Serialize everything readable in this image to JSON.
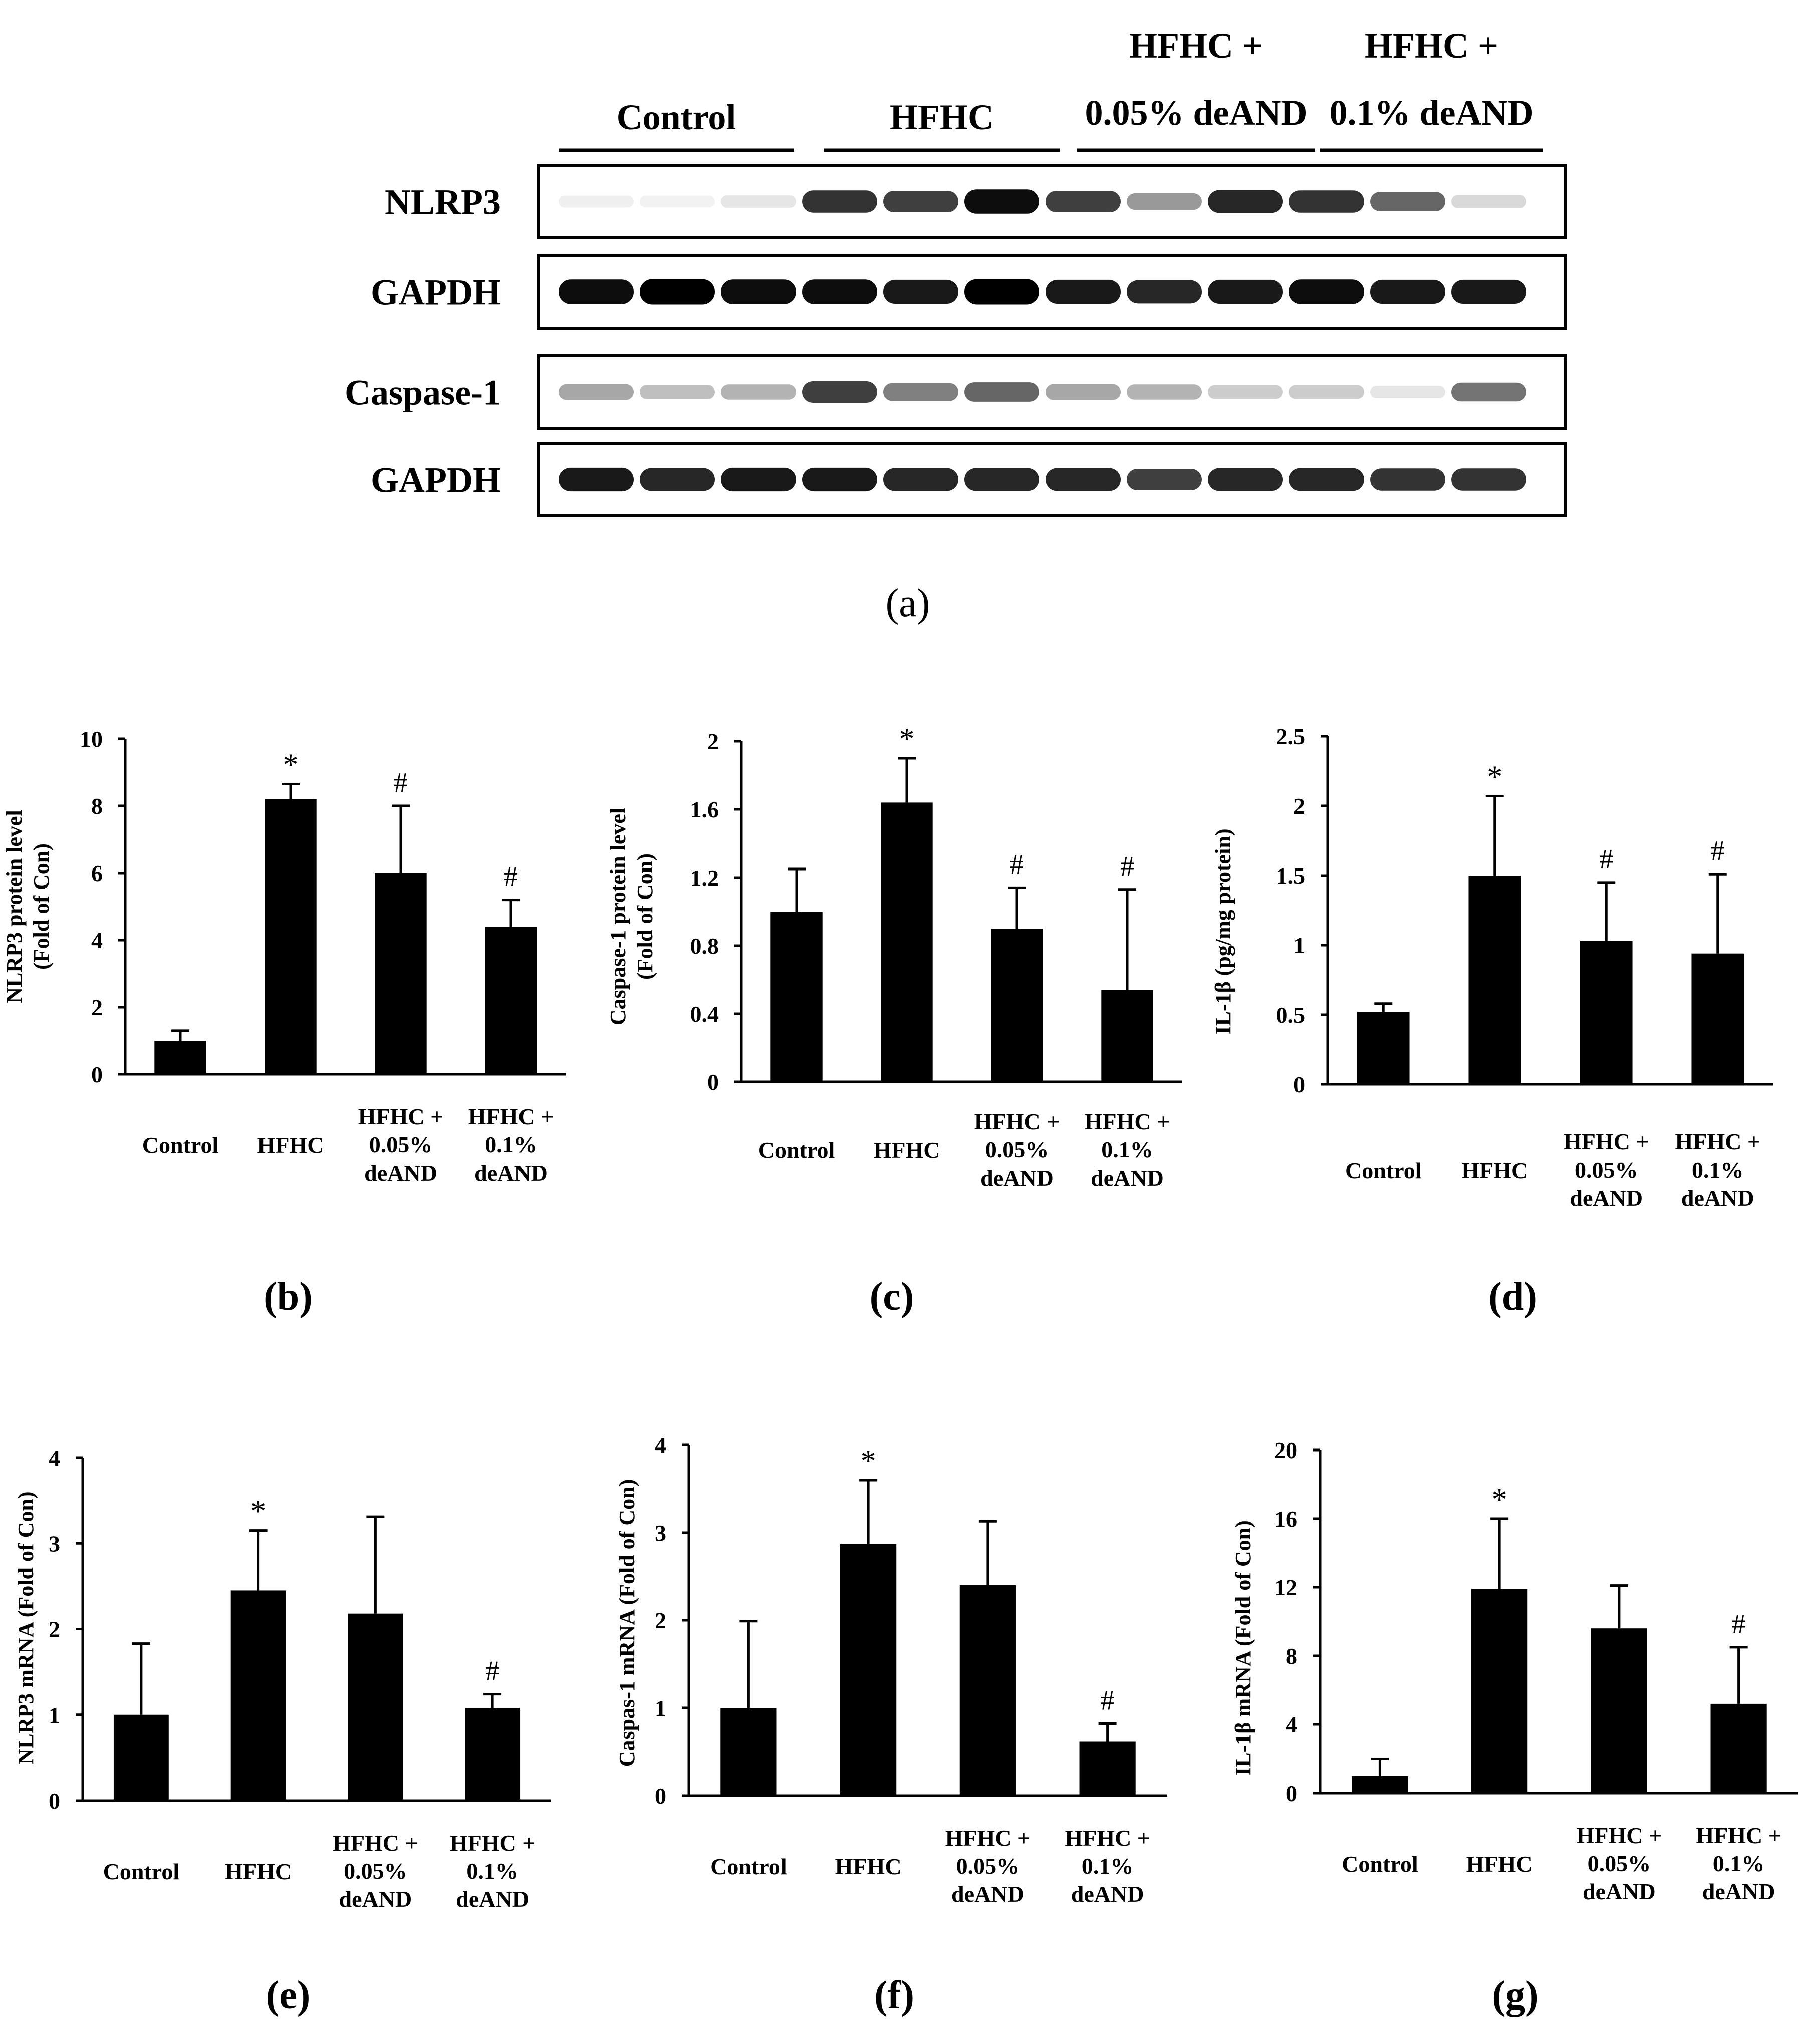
{
  "blot": {
    "groups": [
      "Control",
      "HFHC",
      "HFHC +\n0.05% deAND",
      "HFHC +\n0.1% deAND"
    ],
    "rows": [
      "NLRP3",
      "GAPDH",
      "Caspase-1",
      "GAPDH"
    ],
    "row_band_levels": [
      [
        0.06,
        0.05,
        0.1,
        0.8,
        0.75,
        0.95,
        0.75,
        0.4,
        0.85,
        0.8,
        0.6,
        0.15
      ],
      [
        0.95,
        1.0,
        0.95,
        0.95,
        0.9,
        1.0,
        0.9,
        0.85,
        0.9,
        0.95,
        0.9,
        0.9
      ],
      [
        0.35,
        0.25,
        0.3,
        0.75,
        0.5,
        0.6,
        0.35,
        0.3,
        0.2,
        0.2,
        0.1,
        0.55
      ],
      [
        0.9,
        0.85,
        0.9,
        0.9,
        0.85,
        0.85,
        0.85,
        0.75,
        0.85,
        0.85,
        0.8,
        0.8
      ]
    ],
    "caption": "(a)"
  },
  "chart_data": [
    {
      "id": "b",
      "type": "bar",
      "caption": "(b)",
      "ylabel": "NLRP3 protein level\n(Fold of Con)",
      "categories": [
        "Control",
        "HFHC",
        "HFHC +\n0.05%\ndeAND",
        "HFHC +\n0.1%\ndeAND"
      ],
      "values": [
        1.0,
        8.2,
        6.0,
        4.4
      ],
      "errors": [
        0.3,
        0.45,
        2.0,
        0.8
      ],
      "marks": [
        "",
        "*",
        "#",
        "#"
      ],
      "ylim": [
        0,
        10
      ],
      "yticks": [
        0,
        2,
        4,
        6,
        8,
        10
      ],
      "ytick_labels": [
        "0",
        "2",
        "4",
        "6",
        "8",
        "10"
      ]
    },
    {
      "id": "c",
      "type": "bar",
      "caption": "(c)",
      "ylabel": "Caspase-1 protein level\n(Fold of Con)",
      "categories": [
        "Control",
        "HFHC",
        "HFHC +\n0.05%\ndeAND",
        "HFHC +\n0.1%\ndeAND"
      ],
      "values": [
        1.0,
        1.64,
        0.9,
        0.54
      ],
      "errors": [
        0.25,
        0.26,
        0.24,
        0.59
      ],
      "marks": [
        "",
        "*",
        "#",
        "#"
      ],
      "ylim": [
        0,
        2
      ],
      "yticks": [
        0,
        0.4,
        0.8,
        1.2,
        1.6,
        2
      ],
      "ytick_labels": [
        "0",
        "0.4",
        "0.8",
        "1.2",
        "1.6",
        "2"
      ]
    },
    {
      "id": "d",
      "type": "bar",
      "caption": "(d)",
      "ylabel": "IL-1β (pg/mg protein)",
      "categories": [
        "Control",
        "HFHC",
        "HFHC +\n0.05%\ndeAND",
        "HFHC +\n0.1%\ndeAND"
      ],
      "values": [
        0.52,
        1.5,
        1.03,
        0.94
      ],
      "errors": [
        0.06,
        0.57,
        0.42,
        0.57
      ],
      "marks": [
        "",
        "*",
        "#",
        "#"
      ],
      "ylim": [
        0,
        2.5
      ],
      "yticks": [
        0,
        0.5,
        1,
        1.5,
        2,
        2.5
      ],
      "ytick_labels": [
        "0",
        "0.5",
        "1",
        "1.5",
        "2",
        "2.5"
      ]
    },
    {
      "id": "e",
      "type": "bar",
      "caption": "(e)",
      "ylabel": "NLRP3 mRNA  (Fold of Con)",
      "categories": [
        "Control",
        "HFHC",
        "HFHC +\n0.05%\ndeAND",
        "HFHC +\n0.1%\ndeAND"
      ],
      "values": [
        1.0,
        2.45,
        2.18,
        1.08
      ],
      "errors": [
        0.83,
        0.7,
        1.13,
        0.16
      ],
      "marks": [
        "",
        "*",
        "",
        "#"
      ],
      "ylim": [
        0,
        4
      ],
      "yticks": [
        0,
        1,
        2,
        3,
        4
      ],
      "ytick_labels": [
        "0",
        "1",
        "2",
        "3",
        "4"
      ]
    },
    {
      "id": "f",
      "type": "bar",
      "caption": "(f)",
      "ylabel": "Caspas-1 mRNA  (Fold of Con)",
      "categories": [
        "Control",
        "HFHC",
        "HFHC +\n0.05%\ndeAND",
        "HFHC +\n0.1%\ndeAND"
      ],
      "values": [
        1.0,
        2.87,
        2.4,
        0.62
      ],
      "errors": [
        0.99,
        0.73,
        0.73,
        0.2
      ],
      "marks": [
        "",
        "*",
        "",
        "#"
      ],
      "ylim": [
        0,
        4
      ],
      "yticks": [
        0,
        1,
        2,
        3,
        4
      ],
      "ytick_labels": [
        "0",
        "1",
        "2",
        "3",
        "4"
      ]
    },
    {
      "id": "g",
      "type": "bar",
      "caption": "(g)",
      "ylabel": "IL-1β mRNA  (Fold of Con)",
      "categories": [
        "Control",
        "HFHC",
        "HFHC +\n0.05%\ndeAND",
        "HFHC +\n0.1%\ndeAND"
      ],
      "values": [
        1.0,
        11.9,
        9.6,
        5.2
      ],
      "errors": [
        1.0,
        4.1,
        2.5,
        3.3
      ],
      "marks": [
        "",
        "*",
        "",
        "#"
      ],
      "ylim": [
        0,
        20
      ],
      "yticks": [
        0,
        4,
        8,
        12,
        16,
        20
      ],
      "ytick_labels": [
        "0",
        "4",
        "8",
        "12",
        "16",
        "20"
      ]
    }
  ]
}
